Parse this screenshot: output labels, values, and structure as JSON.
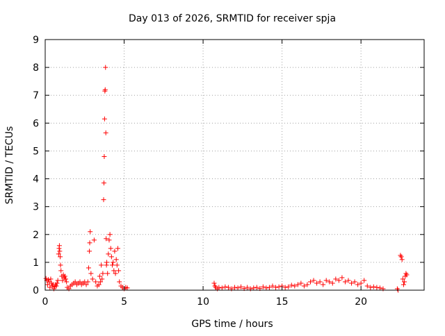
{
  "chart_data": {
    "type": "scatter",
    "title": "Day 013 of 2026, SRMTID for receiver spja",
    "xlabel": "GPS time / hours",
    "ylabel": "SRMTID / TECUs",
    "xlim": [
      0,
      24
    ],
    "ylim": [
      0,
      9
    ],
    "x_ticks": [
      0,
      5,
      10,
      15,
      20
    ],
    "y_ticks": [
      0,
      1,
      2,
      3,
      4,
      5,
      6,
      7,
      8,
      9
    ],
    "grid": true,
    "marker": "plus",
    "series": [
      {
        "name": "SRMTID",
        "color": "#ff0000",
        "points": [
          [
            0.05,
            0.42
          ],
          [
            0.1,
            0.35
          ],
          [
            0.15,
            0.2
          ],
          [
            0.2,
            0.38
          ],
          [
            0.25,
            0.3
          ],
          [
            0.3,
            0.1
          ],
          [
            0.35,
            0.4
          ],
          [
            0.4,
            0.25
          ],
          [
            0.45,
            0.15
          ],
          [
            0.5,
            0.2
          ],
          [
            0.55,
            0.05
          ],
          [
            0.6,
            0.12
          ],
          [
            0.65,
            0.2
          ],
          [
            0.7,
            0.15
          ],
          [
            0.75,
            0.25
          ],
          [
            0.8,
            0.35
          ],
          [
            0.85,
            1.3
          ],
          [
            0.88,
            1.5
          ],
          [
            0.9,
            1.6
          ],
          [
            0.92,
            1.4
          ],
          [
            0.95,
            1.2
          ],
          [
            0.97,
            0.9
          ],
          [
            1.0,
            0.7
          ],
          [
            1.05,
            0.5
          ],
          [
            1.1,
            0.35
          ],
          [
            1.15,
            0.55
          ],
          [
            1.2,
            0.45
          ],
          [
            1.25,
            0.5
          ],
          [
            1.3,
            0.4
          ],
          [
            1.35,
            0.3
          ],
          [
            1.4,
            0.1
          ],
          [
            1.5,
            0.05
          ],
          [
            1.6,
            0.15
          ],
          [
            1.7,
            0.2
          ],
          [
            1.8,
            0.25
          ],
          [
            1.9,
            0.3
          ],
          [
            2.0,
            0.2
          ],
          [
            2.1,
            0.25
          ],
          [
            2.2,
            0.3
          ],
          [
            2.3,
            0.2
          ],
          [
            2.4,
            0.25
          ],
          [
            2.5,
            0.3
          ],
          [
            2.6,
            0.2
          ],
          [
            2.7,
            0.3
          ],
          [
            2.75,
            0.8
          ],
          [
            2.8,
            1.4
          ],
          [
            2.82,
            1.7
          ],
          [
            2.85,
            2.1
          ],
          [
            2.9,
            0.6
          ],
          [
            3.0,
            0.4
          ],
          [
            3.1,
            1.8
          ],
          [
            3.2,
            0.3
          ],
          [
            3.3,
            0.15
          ],
          [
            3.4,
            0.2
          ],
          [
            3.45,
            0.5
          ],
          [
            3.5,
            0.3
          ],
          [
            3.55,
            0.9
          ],
          [
            3.6,
            0.4
          ],
          [
            3.65,
            0.6
          ],
          [
            3.7,
            3.25
          ],
          [
            3.72,
            3.85
          ],
          [
            3.74,
            4.8
          ],
          [
            3.76,
            6.15
          ],
          [
            3.78,
            7.15
          ],
          [
            3.8,
            7.2
          ],
          [
            3.82,
            8.0
          ],
          [
            3.84,
            5.65
          ],
          [
            3.86,
            1.85
          ],
          [
            3.88,
            0.9
          ],
          [
            3.9,
            1.0
          ],
          [
            3.95,
            0.6
          ],
          [
            4.0,
            1.3
          ],
          [
            4.05,
            1.8
          ],
          [
            4.1,
            2.0
          ],
          [
            4.15,
            1.5
          ],
          [
            4.2,
            1.2
          ],
          [
            4.25,
            0.9
          ],
          [
            4.3,
            1.0
          ],
          [
            4.35,
            0.7
          ],
          [
            4.4,
            1.4
          ],
          [
            4.45,
            0.6
          ],
          [
            4.5,
            1.1
          ],
          [
            4.55,
            0.9
          ],
          [
            4.6,
            1.5
          ],
          [
            4.65,
            0.7
          ],
          [
            4.7,
            0.3
          ],
          [
            4.8,
            0.15
          ],
          [
            4.9,
            0.1
          ],
          [
            5.0,
            0.05
          ],
          [
            5.1,
            0.1
          ],
          [
            5.2,
            0.08
          ],
          [
            10.7,
            0.25
          ],
          [
            10.75,
            0.15
          ],
          [
            10.8,
            0.1
          ],
          [
            10.9,
            0.05
          ],
          [
            11.0,
            0.1
          ],
          [
            11.2,
            0.08
          ],
          [
            11.4,
            0.12
          ],
          [
            11.6,
            0.1
          ],
          [
            11.8,
            0.05
          ],
          [
            12.0,
            0.1
          ],
          [
            12.2,
            0.08
          ],
          [
            12.4,
            0.12
          ],
          [
            12.6,
            0.06
          ],
          [
            12.8,
            0.1
          ],
          [
            13.0,
            0.05
          ],
          [
            13.2,
            0.08
          ],
          [
            13.4,
            0.1
          ],
          [
            13.6,
            0.06
          ],
          [
            13.8,
            0.12
          ],
          [
            14.0,
            0.08
          ],
          [
            14.2,
            0.1
          ],
          [
            14.4,
            0.15
          ],
          [
            14.6,
            0.1
          ],
          [
            14.8,
            0.12
          ],
          [
            15.0,
            0.15
          ],
          [
            15.2,
            0.1
          ],
          [
            15.4,
            0.12
          ],
          [
            15.6,
            0.18
          ],
          [
            15.8,
            0.15
          ],
          [
            16.0,
            0.2
          ],
          [
            16.2,
            0.25
          ],
          [
            16.4,
            0.15
          ],
          [
            16.6,
            0.2
          ],
          [
            16.8,
            0.3
          ],
          [
            17.0,
            0.35
          ],
          [
            17.2,
            0.25
          ],
          [
            17.4,
            0.3
          ],
          [
            17.6,
            0.2
          ],
          [
            17.8,
            0.35
          ],
          [
            18.0,
            0.3
          ],
          [
            18.2,
            0.25
          ],
          [
            18.4,
            0.4
          ],
          [
            18.6,
            0.35
          ],
          [
            18.8,
            0.45
          ],
          [
            19.0,
            0.3
          ],
          [
            19.2,
            0.35
          ],
          [
            19.4,
            0.25
          ],
          [
            19.6,
            0.3
          ],
          [
            19.8,
            0.2
          ],
          [
            20.0,
            0.25
          ],
          [
            20.2,
            0.35
          ],
          [
            20.4,
            0.15
          ],
          [
            20.6,
            0.1
          ],
          [
            20.8,
            0.12
          ],
          [
            21.0,
            0.1
          ],
          [
            21.2,
            0.08
          ],
          [
            21.4,
            0.05
          ],
          [
            22.3,
            0.05
          ],
          [
            22.35,
            0.0
          ],
          [
            22.5,
            1.25
          ],
          [
            22.55,
            1.2
          ],
          [
            22.6,
            1.1
          ],
          [
            22.65,
            0.4
          ],
          [
            22.7,
            0.2
          ],
          [
            22.75,
            0.3
          ],
          [
            22.8,
            0.5
          ],
          [
            22.85,
            0.6
          ],
          [
            22.9,
            0.55
          ]
        ]
      }
    ]
  }
}
